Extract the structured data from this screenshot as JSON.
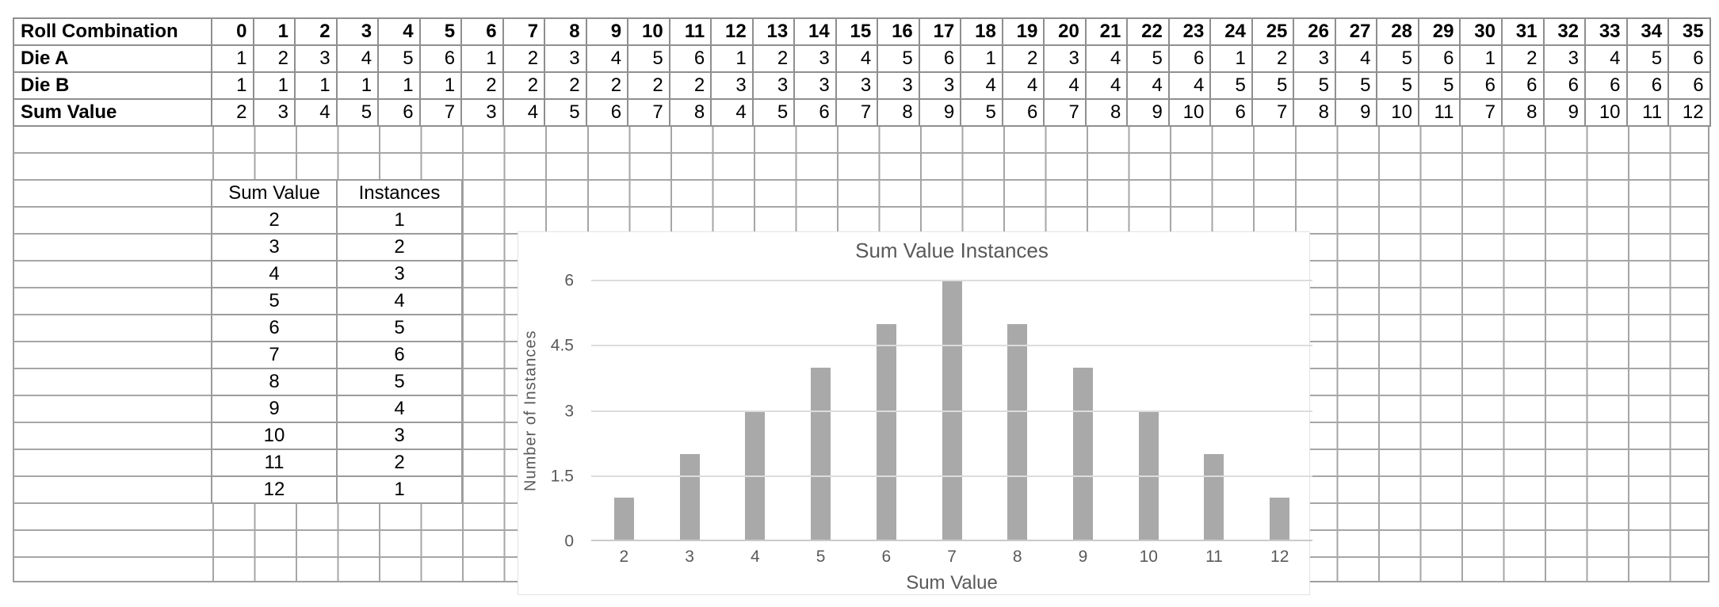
{
  "roll_table": {
    "header": {
      "label": "Roll Combination",
      "columns": [
        0,
        1,
        2,
        3,
        4,
        5,
        6,
        7,
        8,
        9,
        10,
        11,
        12,
        13,
        14,
        15,
        16,
        17,
        18,
        19,
        20,
        21,
        22,
        23,
        24,
        25,
        26,
        27,
        28,
        29,
        30,
        31,
        32,
        33,
        34,
        35
      ]
    },
    "rows": [
      {
        "label": "Die A",
        "values": [
          1,
          2,
          3,
          4,
          5,
          6,
          1,
          2,
          3,
          4,
          5,
          6,
          1,
          2,
          3,
          4,
          5,
          6,
          1,
          2,
          3,
          4,
          5,
          6,
          1,
          2,
          3,
          4,
          5,
          6,
          1,
          2,
          3,
          4,
          5,
          6
        ]
      },
      {
        "label": "Die B",
        "values": [
          1,
          1,
          1,
          1,
          1,
          1,
          2,
          2,
          2,
          2,
          2,
          2,
          3,
          3,
          3,
          3,
          3,
          3,
          4,
          4,
          4,
          4,
          4,
          4,
          5,
          5,
          5,
          5,
          5,
          5,
          6,
          6,
          6,
          6,
          6,
          6
        ]
      },
      {
        "label": "Sum Value",
        "values": [
          2,
          3,
          4,
          5,
          6,
          7,
          3,
          4,
          5,
          6,
          7,
          8,
          4,
          5,
          6,
          7,
          8,
          9,
          5,
          6,
          7,
          8,
          9,
          10,
          6,
          7,
          8,
          9,
          10,
          11,
          7,
          8,
          9,
          10,
          11,
          12
        ]
      }
    ]
  },
  "frequency_table": {
    "headers": [
      "Sum Value",
      "Instances"
    ],
    "rows": [
      [
        2,
        1
      ],
      [
        3,
        2
      ],
      [
        4,
        3
      ],
      [
        5,
        4
      ],
      [
        6,
        5
      ],
      [
        7,
        6
      ],
      [
        8,
        5
      ],
      [
        9,
        4
      ],
      [
        10,
        3
      ],
      [
        11,
        2
      ],
      [
        12,
        1
      ]
    ]
  },
  "chart_data": {
    "type": "bar",
    "title": "Sum Value Instances",
    "xlabel": "Sum Value",
    "ylabel": "Number of Instances",
    "categories": [
      2,
      3,
      4,
      5,
      6,
      7,
      8,
      9,
      10,
      11,
      12
    ],
    "values": [
      1,
      2,
      3,
      4,
      5,
      6,
      5,
      4,
      3,
      2,
      1
    ],
    "y_ticks": [
      6,
      4.5,
      3,
      1.5,
      0
    ],
    "ylim": [
      0,
      6
    ],
    "grid": true,
    "legend": false,
    "bar_color": "#a9a9a9",
    "gridline_color": "#dcdcdc",
    "title_color": "#595959",
    "axis_text_color": "#595959"
  }
}
